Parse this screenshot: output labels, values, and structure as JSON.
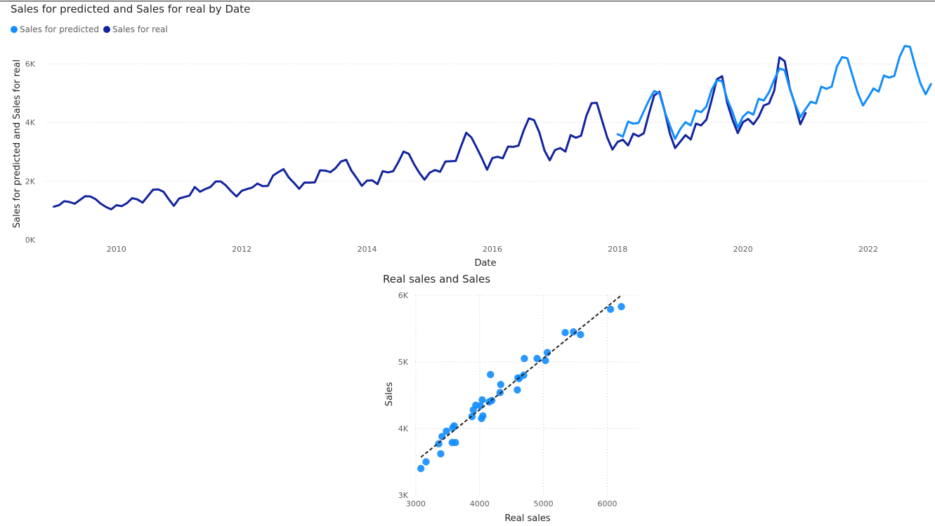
{
  "charts": [
    {
      "type": "line",
      "title": "Sales for predicted and Sales for real by Date",
      "xlabel": "Date",
      "ylabel": "Sales for predicted and Sales for real",
      "xlim": [
        2008.87,
        2022.92
      ],
      "ylim": [
        0,
        6000
      ],
      "x_ticks": [
        2010,
        2012,
        2014,
        2016,
        2018,
        2020,
        2022
      ],
      "y_ticks": [
        0,
        2000,
        4000,
        6000
      ],
      "y_tick_labels": [
        "0K",
        "2K",
        "4K",
        "6K"
      ],
      "grid": "horizontal dotted",
      "legend_position": "top-left",
      "series": [
        {
          "name": "Sales for real",
          "color": "#12239e",
          "x_start": 2009.0,
          "x_step_months": 1,
          "values": [
            1130,
            1180,
            1320,
            1290,
            1230,
            1360,
            1490,
            1480,
            1390,
            1230,
            1120,
            1040,
            1180,
            1150,
            1250,
            1420,
            1380,
            1270,
            1490,
            1710,
            1720,
            1640,
            1390,
            1160,
            1410,
            1460,
            1510,
            1800,
            1640,
            1730,
            1800,
            1990,
            1990,
            1850,
            1650,
            1480,
            1670,
            1730,
            1780,
            1920,
            1830,
            1840,
            2190,
            2310,
            2410,
            2130,
            1940,
            1740,
            1950,
            1950,
            1960,
            2370,
            2360,
            2310,
            2450,
            2670,
            2730,
            2360,
            2110,
            1840,
            2020,
            2030,
            1900,
            2340,
            2300,
            2340,
            2650,
            3010,
            2930,
            2580,
            2290,
            2050,
            2290,
            2380,
            2320,
            2670,
            2680,
            2690,
            3190,
            3650,
            3490,
            3140,
            2780,
            2390,
            2790,
            2830,
            2780,
            3180,
            3170,
            3210,
            3730,
            4140,
            4080,
            3660,
            3040,
            2710,
            3060,
            3130,
            3010,
            3570,
            3480,
            3550,
            4220,
            4660,
            4670,
            4080,
            3490,
            3080,
            3340,
            3410,
            3220,
            3620,
            3530,
            3630,
            4300,
            4920,
            5050,
            4400,
            3630,
            3130,
            3350,
            3570,
            3420,
            3960,
            3900,
            4100,
            4760,
            5470,
            5580,
            4660,
            4100,
            3640,
            4010,
            4120,
            3940,
            4190,
            4580,
            4650,
            5090,
            6220,
            6090,
            5150,
            4600,
            3940,
            4320
          ]
        },
        {
          "name": "Sales for predicted",
          "color": "#118dff",
          "x_start": 2018.0,
          "x_step_months": 1,
          "values": [
            3600,
            3520,
            4030,
            3960,
            3990,
            4380,
            4760,
            5070,
            5000,
            4380,
            3900,
            3440,
            3780,
            4010,
            3900,
            4410,
            4350,
            4550,
            5110,
            5440,
            5410,
            4790,
            4360,
            3820,
            4200,
            4360,
            4270,
            4810,
            4750,
            5030,
            5460,
            5840,
            5780,
            5130,
            4620,
            4180,
            4460,
            4710,
            4650,
            5220,
            5150,
            5220,
            5910,
            6230,
            6190,
            5590,
            5000,
            4580,
            4860,
            5160,
            5050,
            5600,
            5530,
            5590,
            6230,
            6610,
            6580,
            5920,
            5330,
            4960,
            5310
          ]
        }
      ]
    },
    {
      "type": "scatter",
      "title": "Real sales and Sales",
      "xlabel": "Real sales",
      "ylabel": "Sales",
      "xlim": [
        2990,
        6500
      ],
      "ylim": [
        3000,
        6000
      ],
      "x_ticks": [
        3000,
        4000,
        5000,
        6000
      ],
      "x_tick_labels": [
        "3000",
        "4000",
        "5000",
        "6000"
      ],
      "y_ticks": [
        3000,
        4000,
        5000,
        6000
      ],
      "y_tick_labels": [
        "3K",
        "4K",
        "5K",
        "6K"
      ],
      "grid": "both dotted",
      "point_color": "#118dff",
      "trend_line": [
        [
          3080,
          3570
        ],
        [
          6220,
          6000
        ]
      ],
      "points": [
        [
          3080,
          3400
        ],
        [
          3160,
          3500
        ],
        [
          3360,
          3770
        ],
        [
          3390,
          3620
        ],
        [
          3410,
          3880
        ],
        [
          3480,
          3960
        ],
        [
          3570,
          3790
        ],
        [
          3580,
          4010
        ],
        [
          3600,
          4040
        ],
        [
          3620,
          3790
        ],
        [
          3880,
          4180
        ],
        [
          3900,
          4280
        ],
        [
          3940,
          4350
        ],
        [
          4010,
          4340
        ],
        [
          4030,
          4150
        ],
        [
          4040,
          4430
        ],
        [
          4050,
          4190
        ],
        [
          4150,
          4400
        ],
        [
          4170,
          4810
        ],
        [
          4190,
          4420
        ],
        [
          4320,
          4540
        ],
        [
          4330,
          4660
        ],
        [
          4590,
          4580
        ],
        [
          4600,
          4760
        ],
        [
          4620,
          4750
        ],
        [
          4690,
          4800
        ],
        [
          4700,
          5050
        ],
        [
          4900,
          5050
        ],
        [
          5030,
          5020
        ],
        [
          5060,
          5140
        ],
        [
          5340,
          5440
        ],
        [
          5470,
          5450
        ],
        [
          5580,
          5410
        ],
        [
          6050,
          5790
        ],
        [
          6220,
          5830
        ]
      ]
    }
  ],
  "legend": {
    "items": [
      {
        "label": "Sales for predicted",
        "color": "#118dff"
      },
      {
        "label": "Sales for real",
        "color": "#12239e"
      }
    ]
  }
}
